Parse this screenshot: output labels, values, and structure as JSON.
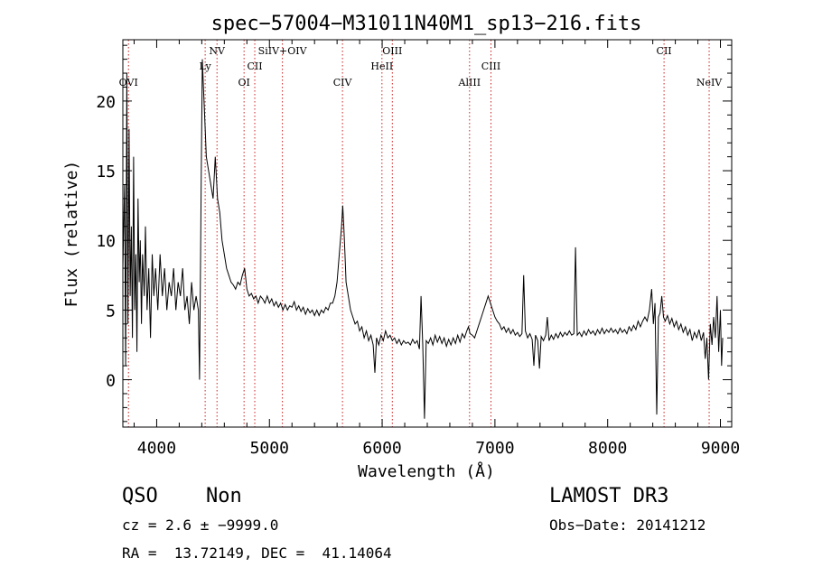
{
  "chart_data": {
    "type": "line",
    "title": "spec−57004−M31011N40M1_sp13−216.fits",
    "xlabel": "Wavelength (Å)",
    "ylabel": "Flux (relative)",
    "xlim": [
      3700,
      9100
    ],
    "ylim": [
      -3.4,
      24.4
    ],
    "x_ticks": [
      4000,
      5000,
      6000,
      7000,
      8000,
      9000
    ],
    "y_ticks": [
      0,
      5,
      10,
      15,
      20
    ],
    "series": [
      {
        "name": "spectrum",
        "points": [
          [
            3700,
            8
          ],
          [
            3715,
            14
          ],
          [
            3725,
            1
          ],
          [
            3735,
            22
          ],
          [
            3745,
            4
          ],
          [
            3755,
            18
          ],
          [
            3765,
            6
          ],
          [
            3775,
            11
          ],
          [
            3785,
            3
          ],
          [
            3795,
            16
          ],
          [
            3805,
            5
          ],
          [
            3815,
            9
          ],
          [
            3825,
            2
          ],
          [
            3835,
            13
          ],
          [
            3845,
            7
          ],
          [
            3855,
            10
          ],
          [
            3865,
            4
          ],
          [
            3875,
            9
          ],
          [
            3890,
            6
          ],
          [
            3900,
            11
          ],
          [
            3915,
            5
          ],
          [
            3930,
            8
          ],
          [
            3945,
            3
          ],
          [
            3960,
            9
          ],
          [
            3975,
            6
          ],
          [
            3990,
            8
          ],
          [
            4010,
            5
          ],
          [
            4030,
            9
          ],
          [
            4050,
            6
          ],
          [
            4070,
            8
          ],
          [
            4090,
            5
          ],
          [
            4110,
            7
          ],
          [
            4130,
            6
          ],
          [
            4150,
            8
          ],
          [
            4170,
            5
          ],
          [
            4190,
            7
          ],
          [
            4210,
            6
          ],
          [
            4230,
            8
          ],
          [
            4250,
            5
          ],
          [
            4270,
            6
          ],
          [
            4290,
            4
          ],
          [
            4310,
            7
          ],
          [
            4330,
            5
          ],
          [
            4350,
            6
          ],
          [
            4370,
            5
          ],
          [
            4380,
            0
          ],
          [
            4395,
            14
          ],
          [
            4405,
            23
          ],
          [
            4415,
            21
          ],
          [
            4425,
            19
          ],
          [
            4440,
            16
          ],
          [
            4460,
            15
          ],
          [
            4480,
            14
          ],
          [
            4500,
            13
          ],
          [
            4520,
            16
          ],
          [
            4540,
            13
          ],
          [
            4560,
            12
          ],
          [
            4580,
            10
          ],
          [
            4600,
            9
          ],
          [
            4620,
            8
          ],
          [
            4640,
            7.5
          ],
          [
            4660,
            7
          ],
          [
            4680,
            6.8
          ],
          [
            4700,
            6.5
          ],
          [
            4720,
            7
          ],
          [
            4740,
            6.8
          ],
          [
            4760,
            7.5
          ],
          [
            4780,
            8
          ],
          [
            4800,
            6.5
          ],
          [
            4820,
            6
          ],
          [
            4840,
            6.2
          ],
          [
            4860,
            5.8
          ],
          [
            4880,
            6
          ],
          [
            4900,
            5.5
          ],
          [
            4920,
            6
          ],
          [
            4940,
            5.8
          ],
          [
            4960,
            5.5
          ],
          [
            4980,
            6
          ],
          [
            5000,
            5.5
          ],
          [
            5020,
            5.8
          ],
          [
            5040,
            5.3
          ],
          [
            5060,
            5.6
          ],
          [
            5080,
            5.2
          ],
          [
            5100,
            5.5
          ],
          [
            5120,
            5
          ],
          [
            5140,
            5.4
          ],
          [
            5160,
            5
          ],
          [
            5180,
            5.3
          ],
          [
            5200,
            5.2
          ],
          [
            5220,
            5.6
          ],
          [
            5240,
            5
          ],
          [
            5260,
            5.3
          ],
          [
            5280,
            4.9
          ],
          [
            5300,
            5.2
          ],
          [
            5320,
            4.7
          ],
          [
            5340,
            5.1
          ],
          [
            5360,
            4.8
          ],
          [
            5380,
            5
          ],
          [
            5400,
            4.6
          ],
          [
            5420,
            5
          ],
          [
            5440,
            4.6
          ],
          [
            5460,
            5
          ],
          [
            5480,
            4.8
          ],
          [
            5500,
            5.2
          ],
          [
            5520,
            5
          ],
          [
            5540,
            5.5
          ],
          [
            5560,
            5.5
          ],
          [
            5580,
            6
          ],
          [
            5600,
            7
          ],
          [
            5620,
            9
          ],
          [
            5640,
            11
          ],
          [
            5650,
            12.5
          ],
          [
            5660,
            11
          ],
          [
            5670,
            9
          ],
          [
            5680,
            7
          ],
          [
            5700,
            6
          ],
          [
            5720,
            5
          ],
          [
            5740,
            4.5
          ],
          [
            5760,
            4
          ],
          [
            5780,
            4.2
          ],
          [
            5800,
            3.5
          ],
          [
            5820,
            3.8
          ],
          [
            5840,
            3
          ],
          [
            5860,
            3.5
          ],
          [
            5880,
            2.8
          ],
          [
            5900,
            3.2
          ],
          [
            5920,
            2.5
          ],
          [
            5935,
            0.5
          ],
          [
            5950,
            3
          ],
          [
            5970,
            2.5
          ],
          [
            5990,
            3.2
          ],
          [
            6010,
            2.8
          ],
          [
            6030,
            3.5
          ],
          [
            6050,
            3
          ],
          [
            6070,
            3.2
          ],
          [
            6090,
            2.8
          ],
          [
            6110,
            3
          ],
          [
            6130,
            2.6
          ],
          [
            6150,
            2.9
          ],
          [
            6170,
            2.5
          ],
          [
            6190,
            2.8
          ],
          [
            6210,
            2.6
          ],
          [
            6230,
            2.7
          ],
          [
            6250,
            2.5
          ],
          [
            6270,
            2.9
          ],
          [
            6290,
            2.6
          ],
          [
            6310,
            2.8
          ],
          [
            6330,
            2.2
          ],
          [
            6345,
            6
          ],
          [
            6360,
            2.5
          ],
          [
            6375,
            -2.8
          ],
          [
            6390,
            2.8
          ],
          [
            6410,
            2.6
          ],
          [
            6430,
            3
          ],
          [
            6450,
            2.5
          ],
          [
            6470,
            3.2
          ],
          [
            6490,
            2.7
          ],
          [
            6510,
            3.1
          ],
          [
            6530,
            2.6
          ],
          [
            6550,
            3
          ],
          [
            6570,
            2.4
          ],
          [
            6590,
            2.9
          ],
          [
            6610,
            2.5
          ],
          [
            6630,
            3
          ],
          [
            6650,
            2.6
          ],
          [
            6670,
            3.2
          ],
          [
            6690,
            2.7
          ],
          [
            6710,
            3.3
          ],
          [
            6730,
            3
          ],
          [
            6750,
            3.5
          ],
          [
            6765,
            3.8
          ],
          [
            6780,
            3.3
          ],
          [
            6800,
            3.2
          ],
          [
            6820,
            3
          ],
          [
            6840,
            3.5
          ],
          [
            6860,
            4
          ],
          [
            6880,
            4.5
          ],
          [
            6900,
            5
          ],
          [
            6920,
            5.5
          ],
          [
            6940,
            6
          ],
          [
            6960,
            5.5
          ],
          [
            6980,
            5
          ],
          [
            7000,
            4.5
          ],
          [
            7020,
            4.2
          ],
          [
            7040,
            4
          ],
          [
            7060,
            3.6
          ],
          [
            7080,
            3.8
          ],
          [
            7100,
            3.4
          ],
          [
            7120,
            3.7
          ],
          [
            7140,
            3.3
          ],
          [
            7160,
            3.6
          ],
          [
            7180,
            3.2
          ],
          [
            7200,
            3.4
          ],
          [
            7220,
            3.1
          ],
          [
            7240,
            3.3
          ],
          [
            7255,
            7.5
          ],
          [
            7270,
            3.5
          ],
          [
            7290,
            3
          ],
          [
            7310,
            3.3
          ],
          [
            7330,
            2.9
          ],
          [
            7345,
            1
          ],
          [
            7360,
            3.2
          ],
          [
            7380,
            2.8
          ],
          [
            7395,
            0.8
          ],
          [
            7410,
            3.1
          ],
          [
            7430,
            2.8
          ],
          [
            7450,
            3.2
          ],
          [
            7465,
            4.5
          ],
          [
            7480,
            2.8
          ],
          [
            7500,
            3.2
          ],
          [
            7520,
            2.9
          ],
          [
            7540,
            3.3
          ],
          [
            7560,
            3
          ],
          [
            7580,
            3.4
          ],
          [
            7600,
            3.1
          ],
          [
            7620,
            3.4
          ],
          [
            7640,
            3.2
          ],
          [
            7660,
            3.5
          ],
          [
            7680,
            3.2
          ],
          [
            7700,
            3.3
          ],
          [
            7715,
            9.5
          ],
          [
            7730,
            3.2
          ],
          [
            7750,
            3.4
          ],
          [
            7770,
            3.1
          ],
          [
            7790,
            3.5
          ],
          [
            7810,
            3.2
          ],
          [
            7830,
            3.6
          ],
          [
            7850,
            3.3
          ],
          [
            7870,
            3.5
          ],
          [
            7890,
            3.2
          ],
          [
            7910,
            3.6
          ],
          [
            7930,
            3.3
          ],
          [
            7950,
            3.7
          ],
          [
            7970,
            3.3
          ],
          [
            7990,
            3.6
          ],
          [
            8010,
            3.4
          ],
          [
            8030,
            3.7
          ],
          [
            8050,
            3.4
          ],
          [
            8070,
            3.6
          ],
          [
            8090,
            3.3
          ],
          [
            8110,
            3.7
          ],
          [
            8130,
            3.4
          ],
          [
            8150,
            3.6
          ],
          [
            8170,
            3.3
          ],
          [
            8190,
            3.8
          ],
          [
            8210,
            3.5
          ],
          [
            8230,
            3.9
          ],
          [
            8250,
            3.6
          ],
          [
            8270,
            4.2
          ],
          [
            8290,
            3.8
          ],
          [
            8310,
            4.2
          ],
          [
            8330,
            4.5
          ],
          [
            8350,
            4.2
          ],
          [
            8370,
            5
          ],
          [
            8390,
            6.5
          ],
          [
            8405,
            4
          ],
          [
            8420,
            5.5
          ],
          [
            8435,
            -2.5
          ],
          [
            8450,
            4.5
          ],
          [
            8465,
            4.8
          ],
          [
            8480,
            6
          ],
          [
            8495,
            4.5
          ],
          [
            8510,
            4.2
          ],
          [
            8530,
            4.6
          ],
          [
            8550,
            4
          ],
          [
            8570,
            4.4
          ],
          [
            8590,
            3.8
          ],
          [
            8610,
            4.2
          ],
          [
            8630,
            3.6
          ],
          [
            8650,
            4
          ],
          [
            8670,
            3.4
          ],
          [
            8690,
            3.8
          ],
          [
            8710,
            3.2
          ],
          [
            8730,
            3.6
          ],
          [
            8750,
            2.8
          ],
          [
            8770,
            3.4
          ],
          [
            8790,
            3
          ],
          [
            8810,
            3.6
          ],
          [
            8830,
            2.8
          ],
          [
            8850,
            3.4
          ],
          [
            8865,
            1.5
          ],
          [
            8880,
            3
          ],
          [
            8895,
            0
          ],
          [
            8910,
            4
          ],
          [
            8925,
            2.5
          ],
          [
            8940,
            4.5
          ],
          [
            8955,
            3
          ],
          [
            8970,
            6
          ],
          [
            8985,
            2
          ],
          [
            9000,
            5
          ],
          [
            9010,
            1
          ],
          [
            9020,
            3
          ]
        ]
      }
    ],
    "lines": [
      {
        "label": "OVI",
        "x": 3750,
        "row": 2
      },
      {
        "label": "Ly",
        "x": 4430,
        "row": 1
      },
      {
        "label": "NV",
        "x": 4535,
        "row": 0
      },
      {
        "label": "OI",
        "x": 4775,
        "row": 2
      },
      {
        "label": "CII",
        "x": 4870,
        "row": 1
      },
      {
        "label": "SiIV+OIV",
        "x": 5115,
        "row": 0
      },
      {
        "label": "CIV",
        "x": 5648,
        "row": 2
      },
      {
        "label": "HeII",
        "x": 5998,
        "row": 1
      },
      {
        "label": "OIII",
        "x": 6090,
        "row": 0
      },
      {
        "label": "AlIII",
        "x": 6775,
        "row": 2
      },
      {
        "label": "CIII",
        "x": 6965,
        "row": 1
      },
      {
        "label": "CII",
        "x": 8500,
        "row": 0
      },
      {
        "label": "NeIV",
        "x": 8900,
        "row": 2
      }
    ]
  },
  "info": {
    "object_class": "QSO",
    "subclass": "Non",
    "cz_line": "cz = 2.6 ± −9999.0",
    "radec_line": "RA =  13.72149, DEC =  41.14064",
    "survey": "LAMOST DR3",
    "obs_date": "Obs−Date: 20141212"
  }
}
